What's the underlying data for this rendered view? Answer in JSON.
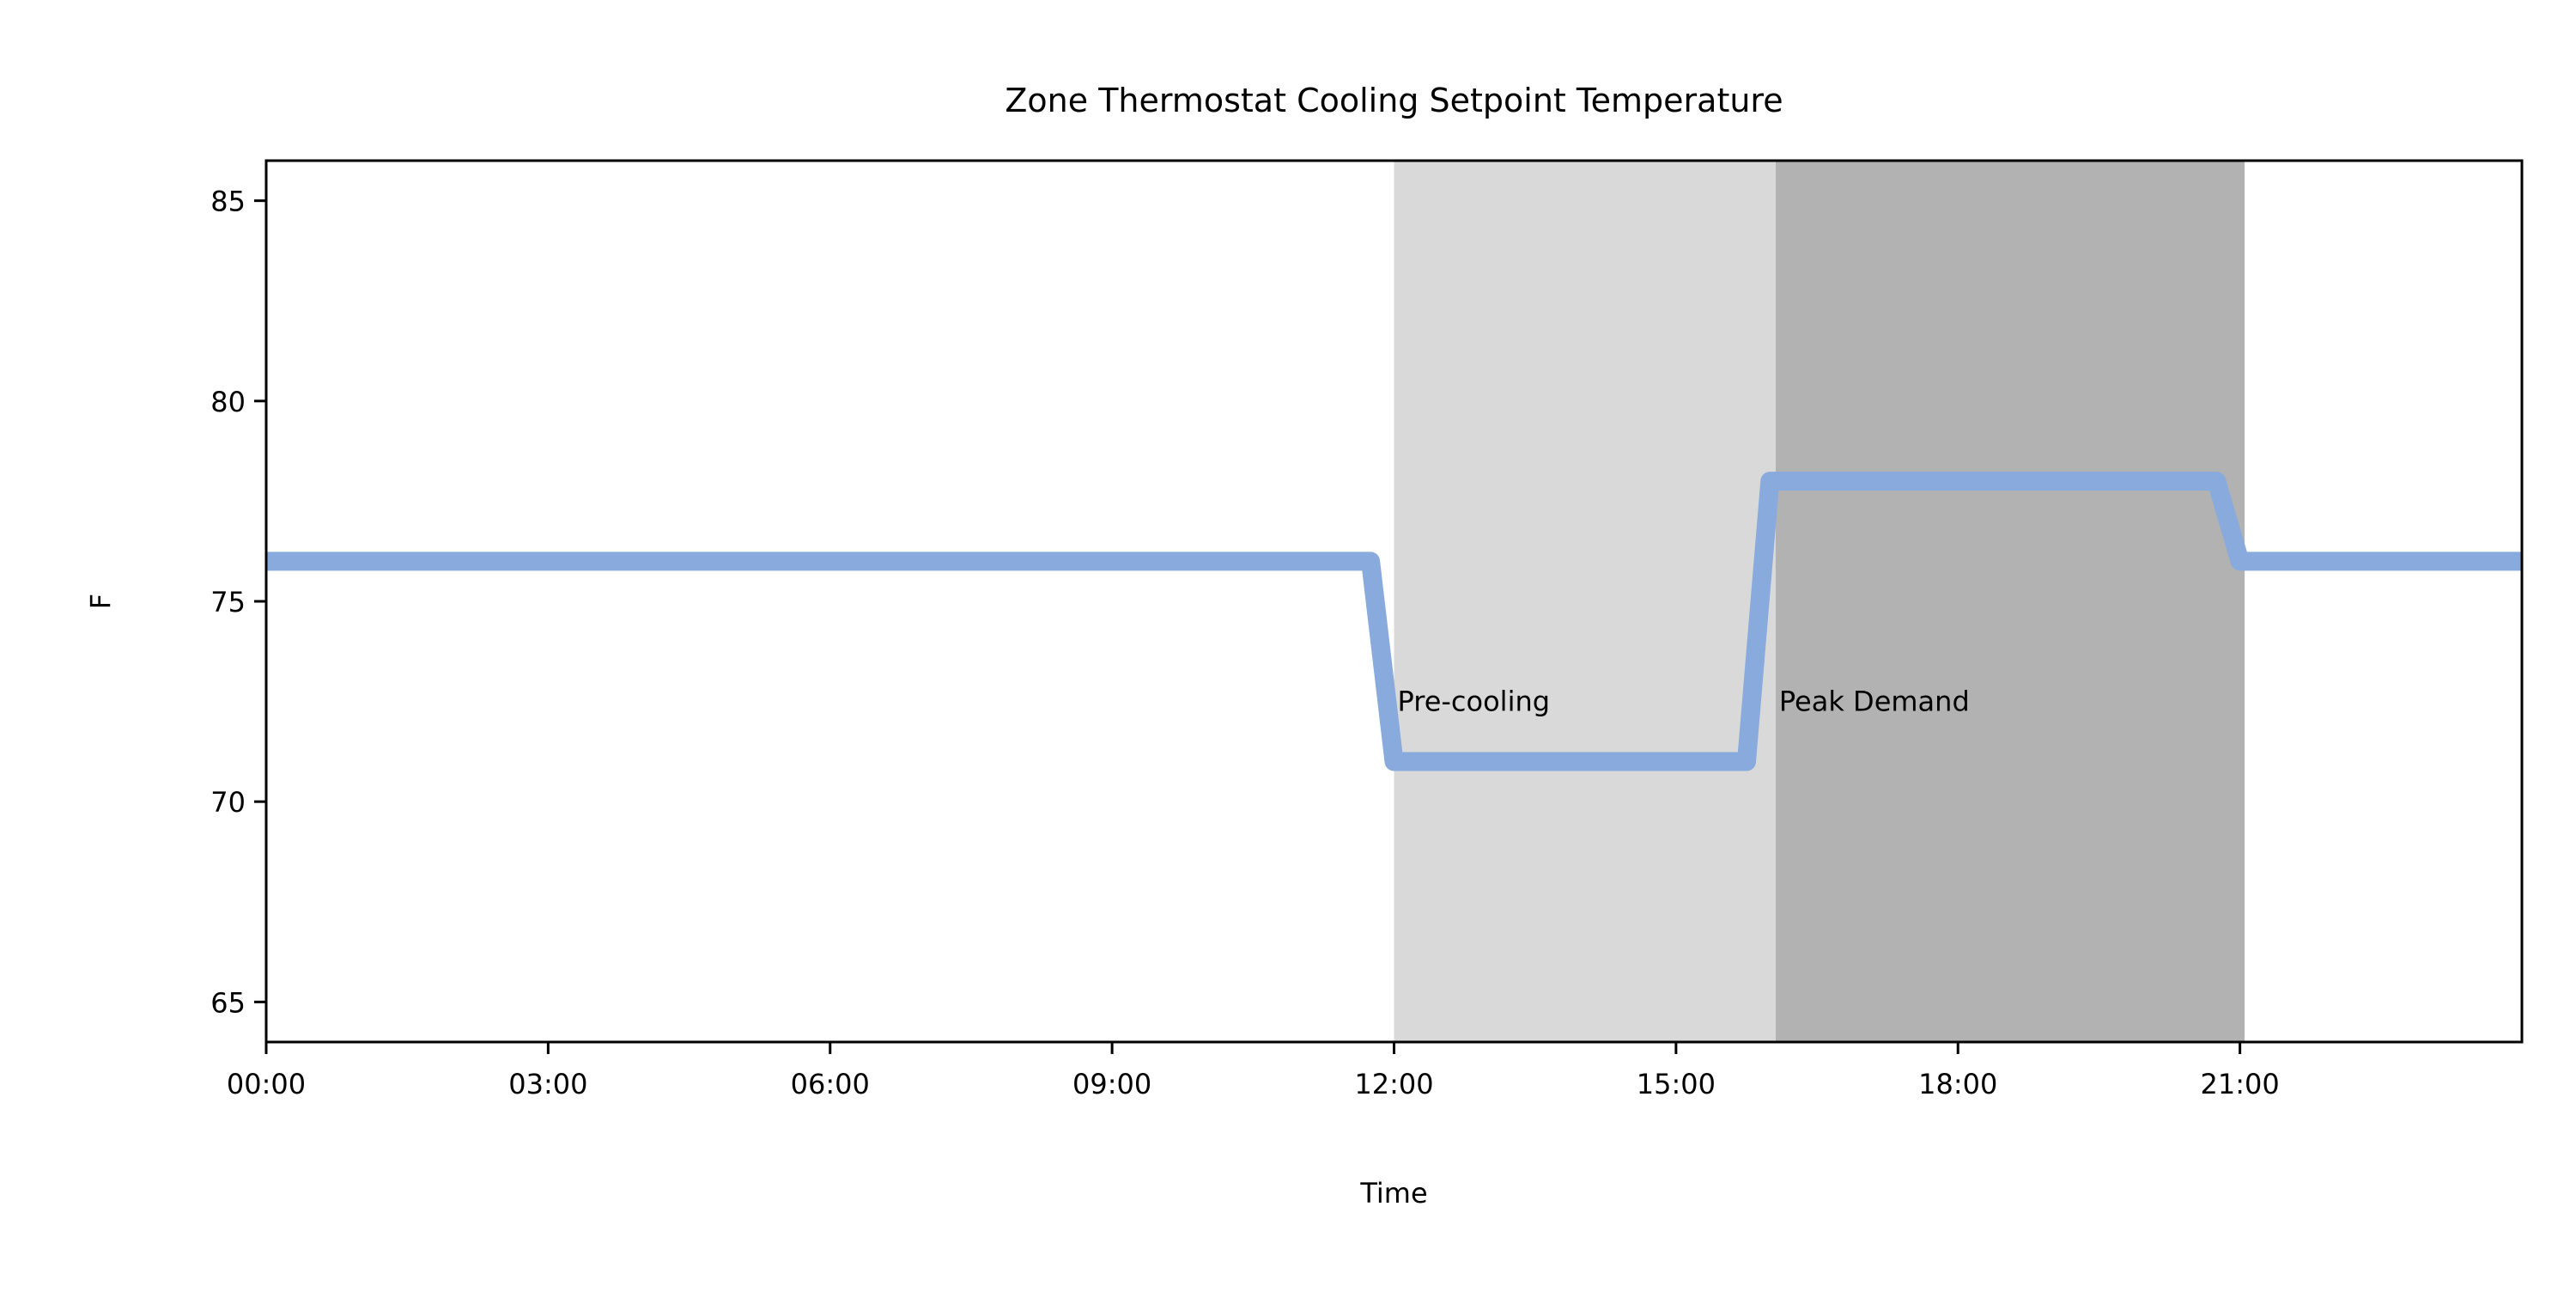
{
  "chart_data": {
    "type": "line",
    "title": "Zone Thermostat Cooling Setpoint Temperature",
    "xlabel": "Time",
    "ylabel": "F",
    "x_unit": "hours",
    "xlim": [
      0,
      24
    ],
    "ylim": [
      64,
      86
    ],
    "x_ticks": [
      {
        "value": 0,
        "label": "00:00"
      },
      {
        "value": 3,
        "label": "03:00"
      },
      {
        "value": 6,
        "label": "06:00"
      },
      {
        "value": 9,
        "label": "09:00"
      },
      {
        "value": 12,
        "label": "12:00"
      },
      {
        "value": 15,
        "label": "15:00"
      },
      {
        "value": 18,
        "label": "18:00"
      },
      {
        "value": 21,
        "label": "21:00"
      }
    ],
    "y_ticks": [
      {
        "value": 65,
        "label": "65"
      },
      {
        "value": 70,
        "label": "70"
      },
      {
        "value": 75,
        "label": "75"
      },
      {
        "value": 80,
        "label": "80"
      },
      {
        "value": 85,
        "label": "85"
      }
    ],
    "grid": false,
    "legend": "none",
    "series": [
      {
        "color": "#88aadc",
        "x": [
          0,
          11.75,
          12,
          15.75,
          16,
          20.75,
          21,
          24
        ],
        "y": [
          76,
          76,
          71,
          71,
          78,
          78,
          76,
          76
        ]
      }
    ],
    "shaded_regions": [
      {
        "label": "Pre-cooling",
        "x0": 12,
        "x1": 16.06,
        "color": "#d9d9d9",
        "label_y": 72.5
      },
      {
        "label": "Peak Demand",
        "x0": 16.06,
        "x1": 21.05,
        "color": "#b2b2b2",
        "label_y": 72.5
      }
    ]
  }
}
